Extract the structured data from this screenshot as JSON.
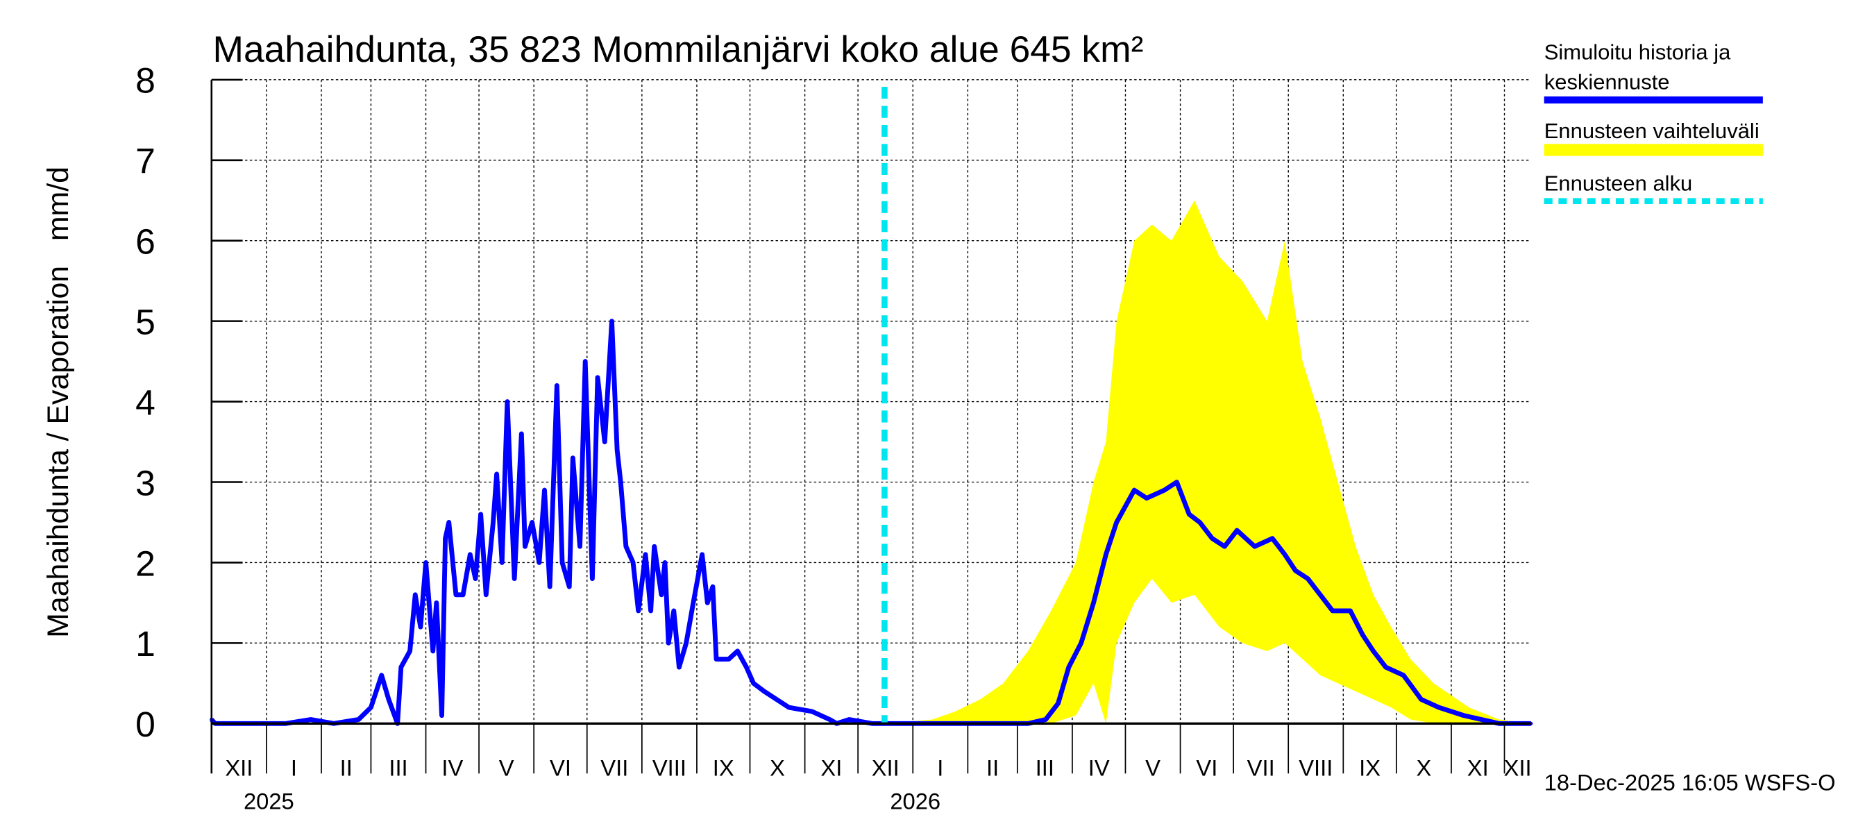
{
  "chart_data": {
    "type": "line",
    "title": "Maahaihdunta, 35 823 Mommilanjärvi koko alue 645 km²",
    "ylabel": "Maahaihdunta / Evaporation   mm/d",
    "xlabel": "",
    "x_unit": "days since 2024-12-01",
    "xlim": [
      0,
      745
    ],
    "ylim": [
      0,
      8
    ],
    "yticks": [
      0,
      1,
      2,
      3,
      4,
      5,
      6,
      7,
      8
    ],
    "grid": true,
    "month_lengths": [
      31,
      31,
      28,
      31,
      30,
      31,
      30,
      31,
      31,
      30,
      31,
      30,
      31,
      31,
      28,
      31,
      30,
      31,
      30,
      31,
      31,
      30,
      31,
      30,
      31
    ],
    "month_labels": [
      "XII",
      "I",
      "II",
      "III",
      "IV",
      "V",
      "VI",
      "VII",
      "VIII",
      "IX",
      "X",
      "XI",
      "XII",
      "I",
      "II",
      "III",
      "IV",
      "V",
      "VI",
      "VII",
      "VIII",
      "IX",
      "X",
      "XI",
      "XII"
    ],
    "year_labels": [
      {
        "label": "2025",
        "day": 31
      },
      {
        "label": "2026",
        "day": 396
      }
    ],
    "forecast_start_day": 380,
    "footer": "18-Dec-2025 16:05 WSFS-O",
    "legend": {
      "placement": "right",
      "items": [
        {
          "label_line1": "Simuloitu historia ja",
          "label_line2": "keskiennuste",
          "color": "#0000ff",
          "style": "solid"
        },
        {
          "label_line1": "Ennusteen vaihteluväli",
          "label_line2": "",
          "color": "#ffff00",
          "style": "band"
        },
        {
          "label_line1": "Ennusteen alku",
          "label_line2": "",
          "color": "#00e5ee",
          "style": "dashed"
        }
      ]
    },
    "series": [
      {
        "name": "Simuloitu historia ja keskiennuste",
        "color": "#0000ff",
        "points": [
          [
            0,
            0.05
          ],
          [
            2,
            0
          ],
          [
            42,
            0
          ],
          [
            56,
            0.05
          ],
          [
            69,
            0
          ],
          [
            83,
            0.05
          ],
          [
            90,
            0.2
          ],
          [
            96,
            0.6
          ],
          [
            100,
            0.3
          ],
          [
            105,
            0
          ],
          [
            107,
            0.7
          ],
          [
            112,
            0.9
          ],
          [
            115,
            1.6
          ],
          [
            118,
            1.2
          ],
          [
            121,
            2.0
          ],
          [
            125,
            0.9
          ],
          [
            127,
            1.5
          ],
          [
            130,
            0.1
          ],
          [
            132,
            2.3
          ],
          [
            134,
            2.5
          ],
          [
            138,
            1.6
          ],
          [
            142,
            1.6
          ],
          [
            146,
            2.1
          ],
          [
            149,
            1.8
          ],
          [
            152,
            2.6
          ],
          [
            155,
            1.6
          ],
          [
            159,
            2.5
          ],
          [
            161,
            3.1
          ],
          [
            164,
            2.0
          ],
          [
            167,
            4.0
          ],
          [
            171,
            1.8
          ],
          [
            175,
            3.6
          ],
          [
            177,
            2.2
          ],
          [
            181,
            2.5
          ],
          [
            185,
            2.0
          ],
          [
            188,
            2.9
          ],
          [
            191,
            1.7
          ],
          [
            195,
            4.2
          ],
          [
            198,
            2.0
          ],
          [
            202,
            1.7
          ],
          [
            204,
            3.3
          ],
          [
            208,
            2.2
          ],
          [
            211,
            4.5
          ],
          [
            215,
            1.8
          ],
          [
            218,
            4.3
          ],
          [
            222,
            3.5
          ],
          [
            226,
            5.0
          ],
          [
            229,
            3.4
          ],
          [
            231,
            3.0
          ],
          [
            234,
            2.2
          ],
          [
            238,
            2.0
          ],
          [
            241,
            1.4
          ],
          [
            245,
            2.1
          ],
          [
            248,
            1.4
          ],
          [
            250,
            2.2
          ],
          [
            254,
            1.6
          ],
          [
            256,
            2.0
          ],
          [
            258,
            1.0
          ],
          [
            261,
            1.4
          ],
          [
            264,
            0.7
          ],
          [
            268,
            1.0
          ],
          [
            272,
            1.5
          ],
          [
            277,
            2.1
          ],
          [
            280,
            1.5
          ],
          [
            283,
            1.7
          ],
          [
            285,
            0.8
          ],
          [
            292,
            0.8
          ],
          [
            297,
            0.9
          ],
          [
            302,
            0.7
          ],
          [
            306,
            0.5
          ],
          [
            312,
            0.4
          ],
          [
            319,
            0.3
          ],
          [
            326,
            0.2
          ],
          [
            339,
            0.15
          ],
          [
            349,
            0.05
          ],
          [
            353,
            0
          ],
          [
            360,
            0.05
          ],
          [
            373,
            0
          ],
          [
            380,
            0
          ],
          [
            461,
            0
          ],
          [
            471,
            0.05
          ],
          [
            478,
            0.25
          ],
          [
            484,
            0.7
          ],
          [
            491,
            1.0
          ],
          [
            498,
            1.5
          ],
          [
            505,
            2.1
          ],
          [
            511,
            2.5
          ],
          [
            521,
            2.9
          ],
          [
            528,
            2.8
          ],
          [
            538,
            2.9
          ],
          [
            545,
            3.0
          ],
          [
            552,
            2.6
          ],
          [
            558,
            2.5
          ],
          [
            565,
            2.3
          ],
          [
            572,
            2.2
          ],
          [
            579,
            2.4
          ],
          [
            589,
            2.2
          ],
          [
            599,
            2.3
          ],
          [
            606,
            2.1
          ],
          [
            612,
            1.9
          ],
          [
            619,
            1.8
          ],
          [
            626,
            1.6
          ],
          [
            633,
            1.4
          ],
          [
            643,
            1.4
          ],
          [
            650,
            1.1
          ],
          [
            656,
            0.9
          ],
          [
            663,
            0.7
          ],
          [
            673,
            0.6
          ],
          [
            683,
            0.3
          ],
          [
            693,
            0.2
          ],
          [
            707,
            0.1
          ],
          [
            717,
            0.05
          ],
          [
            727,
            0
          ],
          [
            745,
            0
          ]
        ]
      },
      {
        "name": "Ennusteen vaihteluväli",
        "color": "#ffff00",
        "band": [
          [
            380,
            0,
            0
          ],
          [
            407,
            0,
            0.05
          ],
          [
            420,
            0,
            0.15
          ],
          [
            434,
            0,
            0.3
          ],
          [
            447,
            0,
            0.5
          ],
          [
            461,
            0,
            0.9
          ],
          [
            474,
            0,
            1.4
          ],
          [
            488,
            0.1,
            2.0
          ],
          [
            498,
            0.5,
            3.0
          ],
          [
            505,
            0,
            3.5
          ],
          [
            511,
            1.0,
            5.0
          ],
          [
            521,
            1.5,
            6.0
          ],
          [
            531,
            1.8,
            6.2
          ],
          [
            542,
            1.5,
            6.0
          ],
          [
            555,
            1.6,
            6.5
          ],
          [
            569,
            1.2,
            5.8
          ],
          [
            582,
            1.0,
            5.5
          ],
          [
            596,
            0.9,
            5.0
          ],
          [
            606,
            1.0,
            6.0
          ],
          [
            616,
            0.8,
            4.5
          ],
          [
            626,
            0.6,
            3.8
          ],
          [
            636,
            0.5,
            3.0
          ],
          [
            646,
            0.4,
            2.2
          ],
          [
            656,
            0.3,
            1.6
          ],
          [
            666,
            0.2,
            1.2
          ],
          [
            677,
            0.05,
            0.8
          ],
          [
            690,
            0,
            0.5
          ],
          [
            710,
            0,
            0.2
          ],
          [
            727,
            0,
            0.05
          ],
          [
            745,
            0,
            0
          ]
        ]
      }
    ]
  }
}
